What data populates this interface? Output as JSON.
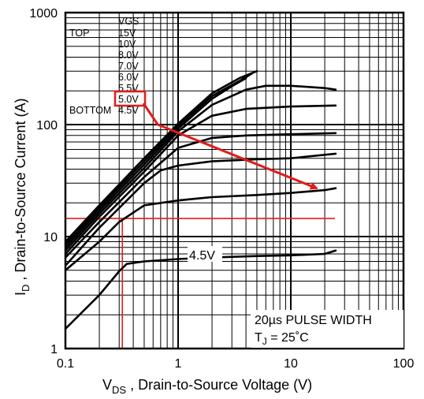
{
  "chart_data": {
    "type": "line",
    "x_scale": "log",
    "y_scale": "log",
    "xlim": [
      0.1,
      100
    ],
    "ylim": [
      1,
      1000
    ],
    "x_ticks": [
      "0.1",
      "1",
      "10",
      "100"
    ],
    "y_ticks": [
      "1",
      "10",
      "100",
      "1000"
    ],
    "xlabel_main": "V",
    "xlabel_sub": "DS",
    "xlabel_rest": " , Drain-to-Source Voltage (V)",
    "ylabel_main": "I",
    "ylabel_sub": "D",
    "ylabel_rest": " ,  Drain-to-Source Current (A)",
    "grid": true,
    "legend": {
      "header": "VGS",
      "top_label": "TOP",
      "bottom_label": "BOTTOM",
      "entries": [
        "15V",
        "10V",
        "8.0V",
        "7.0V",
        "6.0V",
        "5.5V",
        "5.0V",
        "4.5V"
      ],
      "highlighted": "5.0V"
    },
    "notes": {
      "line1": "20µs PULSE WIDTH",
      "line2_main": "T",
      "line2_sub": "J",
      "line2_rest": " = 25˚C"
    },
    "curve_label": "4.5V",
    "series": [
      {
        "name": "15V",
        "x": [
          0.1,
          0.2,
          0.5,
          1.0,
          2.0,
          3.5,
          5.0
        ],
        "y": [
          9.0,
          19,
          50,
          102,
          190,
          260,
          300
        ]
      },
      {
        "name": "10V",
        "x": [
          0.1,
          0.2,
          0.5,
          1.0,
          2.0,
          3.5,
          4.5
        ],
        "y": [
          8.5,
          18,
          47,
          97,
          180,
          245,
          285
        ]
      },
      {
        "name": "8.0V",
        "x": [
          0.1,
          0.2,
          0.5,
          1.0,
          2.0,
          3.0,
          4.0
        ],
        "y": [
          8.0,
          17,
          44,
          92,
          170,
          220,
          260
        ]
      },
      {
        "name": "7.0V",
        "x": [
          0.1,
          0.2,
          0.5,
          1.0,
          2.0,
          4.0,
          6.0,
          10,
          20,
          25
        ],
        "y": [
          7.5,
          16,
          41,
          87,
          150,
          205,
          222,
          222,
          212,
          205
        ]
      },
      {
        "name": "6.0V",
        "x": [
          0.1,
          0.2,
          0.5,
          1.0,
          2.0,
          4.0,
          10,
          25
        ],
        "y": [
          7.0,
          15,
          38,
          80,
          120,
          138,
          145,
          148
        ]
      },
      {
        "name": "5.5V",
        "x": [
          0.1,
          0.2,
          0.5,
          1.0,
          2.0,
          4.0,
          10,
          25
        ],
        "y": [
          6.5,
          13.5,
          34,
          62,
          76,
          80,
          82,
          84
        ]
      },
      {
        "name": "5.0V",
        "x": [
          0.1,
          0.2,
          0.5,
          0.7,
          1.0,
          2.0,
          5.0,
          10,
          25
        ],
        "y": [
          5.5,
          12,
          30,
          39,
          43,
          47,
          49,
          50,
          55
        ]
      },
      {
        "name": "4.5V",
        "x": [
          0.1,
          0.2,
          0.3,
          0.5,
          1.0,
          2.0,
          5.0,
          10,
          20,
          25
        ],
        "y": [
          5.0,
          9.0,
          13.5,
          19,
          21,
          22.5,
          23.5,
          24.5,
          26,
          27
        ]
      },
      {
        "name": "",
        "x": [
          0.1,
          0.2,
          0.3,
          0.35,
          0.5,
          1.0,
          2.0,
          5.0,
          10,
          20,
          25
        ],
        "y": [
          1.5,
          3.0,
          4.9,
          5.7,
          6.0,
          6.3,
          6.5,
          6.7,
          6.8,
          7.0,
          7.5
        ]
      }
    ],
    "reference_lines": {
      "y": 14.5,
      "x": 0.32
    },
    "annotation_arrow": {
      "from": [
        0.66,
        100
      ],
      "to": [
        17,
        27
      ]
    },
    "colors": {
      "curves": "#000000",
      "grid": "#000000",
      "annotation": "#e31b1b",
      "background": "#ffffff"
    }
  }
}
